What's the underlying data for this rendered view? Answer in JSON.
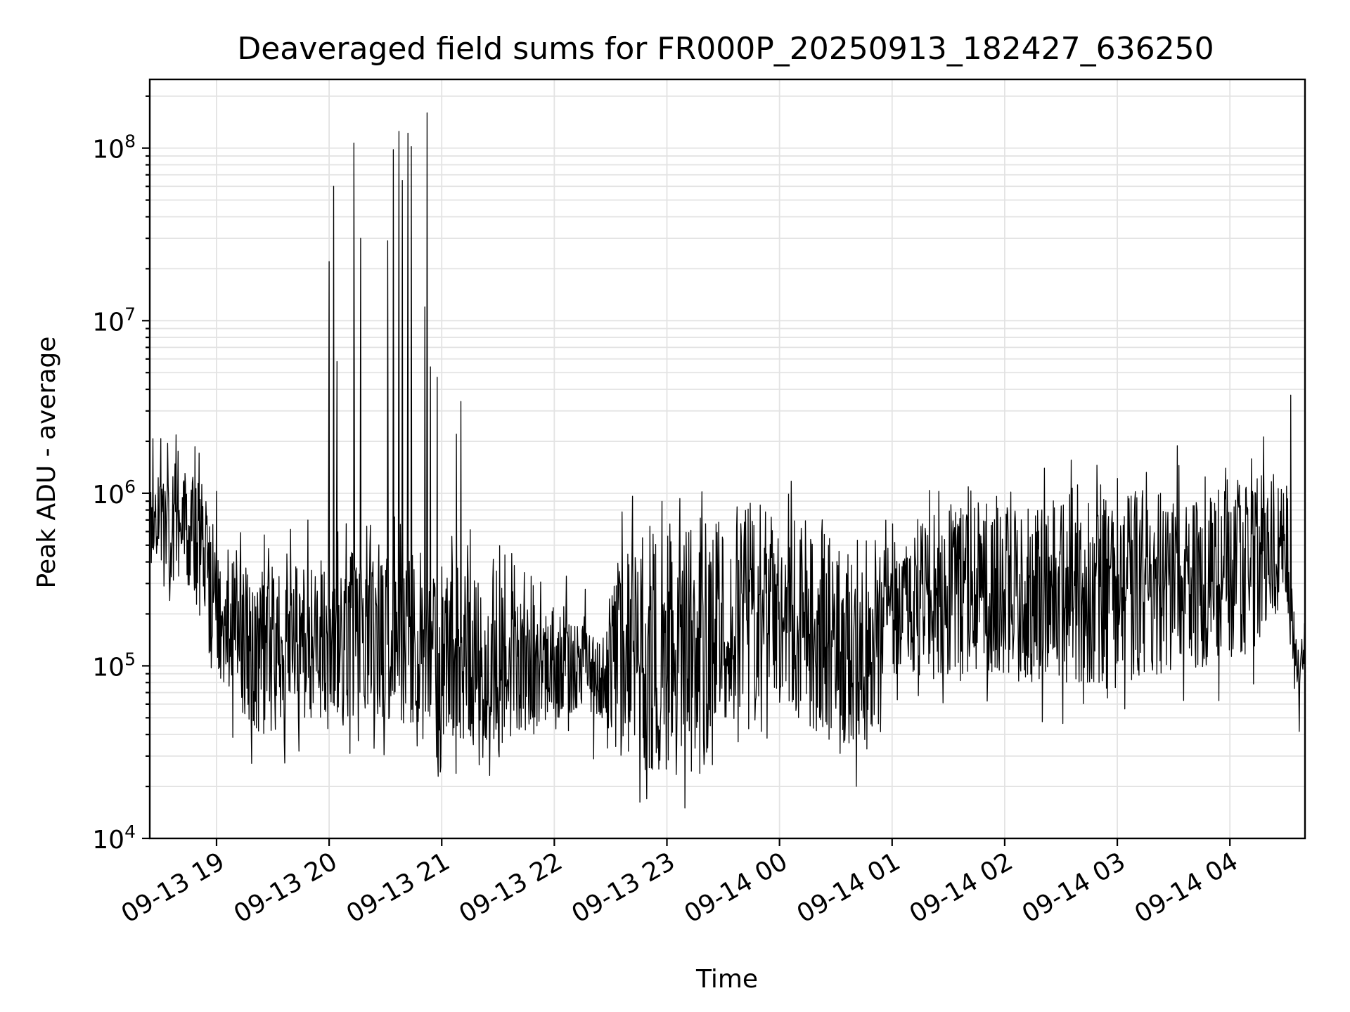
{
  "chart_data": {
    "type": "line",
    "title": "Deaveraged field sums for FR000P_20250913_182427_636250",
    "xlabel": "Time",
    "ylabel": "Peak ADU - average",
    "yscale": "log",
    "ylim": [
      10000,
      250000000
    ],
    "xlim": [
      "2025-09-13 18:24:27",
      "2025-09-14 04:40:00"
    ],
    "grid": true,
    "x_ticks": [
      {
        "label": "09-13 19",
        "hours": 19
      },
      {
        "label": "09-13 20",
        "hours": 20
      },
      {
        "label": "09-13 21",
        "hours": 21
      },
      {
        "label": "09-13 22",
        "hours": 22
      },
      {
        "label": "09-13 23",
        "hours": 23
      },
      {
        "label": "09-14 00",
        "hours": 24
      },
      {
        "label": "09-14 01",
        "hours": 25
      },
      {
        "label": "09-14 02",
        "hours": 26
      },
      {
        "label": "09-14 03",
        "hours": 27
      },
      {
        "label": "09-14 04",
        "hours": 28
      }
    ],
    "y_ticks": [
      {
        "base": "10",
        "exp": "4",
        "value": 10000
      },
      {
        "base": "10",
        "exp": "5",
        "value": 100000
      },
      {
        "base": "10",
        "exp": "6",
        "value": 1000000
      },
      {
        "base": "10",
        "exp": "7",
        "value": 10000000
      },
      {
        "base": "10",
        "exp": "8",
        "value": 100000000
      }
    ],
    "series": [
      {
        "name": "field sums",
        "color": "#000000",
        "x_start_hours": 18.407,
        "x_end_hours": 28.667,
        "points": 2200,
        "envelope": [
          {
            "hours": 18.41,
            "low": 400000,
            "high": 1200000
          },
          {
            "hours": 18.8,
            "low": 250000,
            "high": 1500000
          },
          {
            "hours": 19.0,
            "low": 80000,
            "high": 600000
          },
          {
            "hours": 19.4,
            "low": 40000,
            "high": 350000
          },
          {
            "hours": 19.8,
            "low": 50000,
            "high": 400000
          },
          {
            "hours": 20.5,
            "low": 50000,
            "high": 500000
          },
          {
            "hours": 21.0,
            "low": 40000,
            "high": 400000
          },
          {
            "hours": 21.5,
            "low": 35000,
            "high": 300000
          },
          {
            "hours": 22.0,
            "low": 50000,
            "high": 200000
          },
          {
            "hours": 22.45,
            "low": 50000,
            "high": 150000
          },
          {
            "hours": 22.6,
            "low": 25000,
            "high": 600000
          },
          {
            "hours": 23.0,
            "low": 25000,
            "high": 700000
          },
          {
            "hours": 23.5,
            "low": 50000,
            "high": 800000
          },
          {
            "hours": 24.0,
            "low": 60000,
            "high": 900000
          },
          {
            "hours": 24.5,
            "low": 35000,
            "high": 600000
          },
          {
            "hours": 24.8,
            "low": 35000,
            "high": 300000
          },
          {
            "hours": 25.0,
            "low": 80000,
            "high": 700000
          },
          {
            "hours": 25.5,
            "low": 90000,
            "high": 800000
          },
          {
            "hours": 26.0,
            "low": 90000,
            "high": 900000
          },
          {
            "hours": 26.5,
            "low": 80000,
            "high": 1000000
          },
          {
            "hours": 27.0,
            "low": 80000,
            "high": 1000000
          },
          {
            "hours": 27.5,
            "low": 90000,
            "high": 1100000
          },
          {
            "hours": 28.2,
            "low": 120000,
            "high": 1200000
          },
          {
            "hours": 28.5,
            "low": 250000,
            "high": 1500000
          },
          {
            "hours": 28.58,
            "low": 60000,
            "high": 200000
          },
          {
            "hours": 28.667,
            "low": 100000,
            "high": 180000
          }
        ],
        "spikes": [
          {
            "hours": 20.0,
            "value": 22000000
          },
          {
            "hours": 20.04,
            "value": 60000000
          },
          {
            "hours": 20.07,
            "value": 5800000
          },
          {
            "hours": 20.22,
            "value": 107000000
          },
          {
            "hours": 20.28,
            "value": 30000000
          },
          {
            "hours": 20.52,
            "value": 29000000
          },
          {
            "hours": 20.57,
            "value": 98000000
          },
          {
            "hours": 20.62,
            "value": 125000000
          },
          {
            "hours": 20.65,
            "value": 65000000
          },
          {
            "hours": 20.7,
            "value": 122000000
          },
          {
            "hours": 20.73,
            "value": 102000000
          },
          {
            "hours": 20.85,
            "value": 12000000
          },
          {
            "hours": 20.87,
            "value": 160000000
          },
          {
            "hours": 20.9,
            "value": 5400000
          },
          {
            "hours": 20.96,
            "value": 4700000
          },
          {
            "hours": 21.13,
            "value": 2200000
          },
          {
            "hours": 21.17,
            "value": 3400000
          },
          {
            "hours": 28.54,
            "value": 3700000
          }
        ],
        "minimum": {
          "hours": 23.16,
          "value": 15000
        }
      }
    ]
  }
}
